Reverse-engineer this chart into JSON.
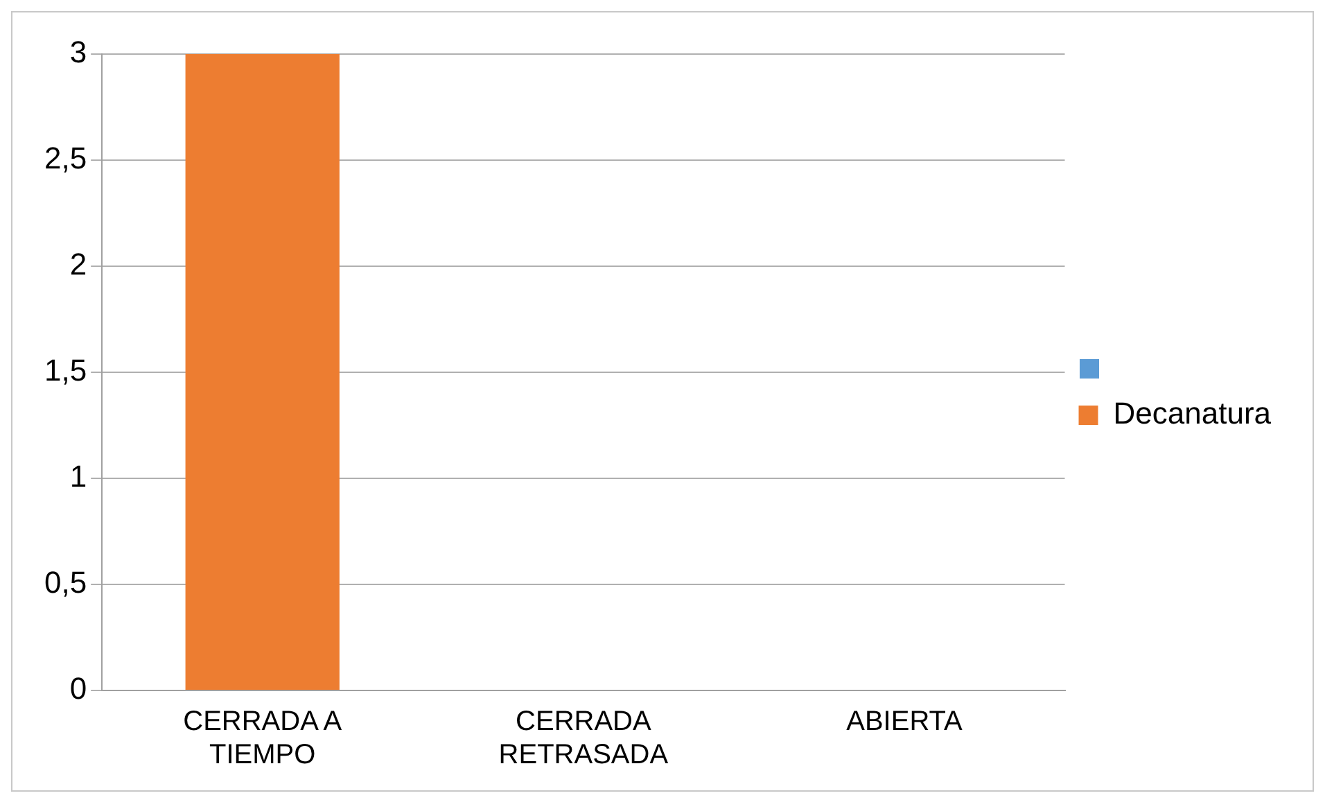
{
  "chart_data": {
    "type": "bar",
    "categories": [
      "CERRADA A TIEMPO",
      "CERRADA RETRASADA",
      "ABIERTA"
    ],
    "series": [
      {
        "name": "Decanatura",
        "color": "#ed7d31",
        "values": [
          3,
          0,
          0
        ]
      }
    ],
    "ylim": [
      0,
      3
    ],
    "yticks": [
      0,
      {
        "value": 0.5,
        "label": "0,5"
      },
      1,
      {
        "value": 1.5,
        "label": "1,5"
      },
      2,
      {
        "value": 2.5,
        "label": "2,5"
      },
      3
    ],
    "grid": "y",
    "legend": "right"
  }
}
